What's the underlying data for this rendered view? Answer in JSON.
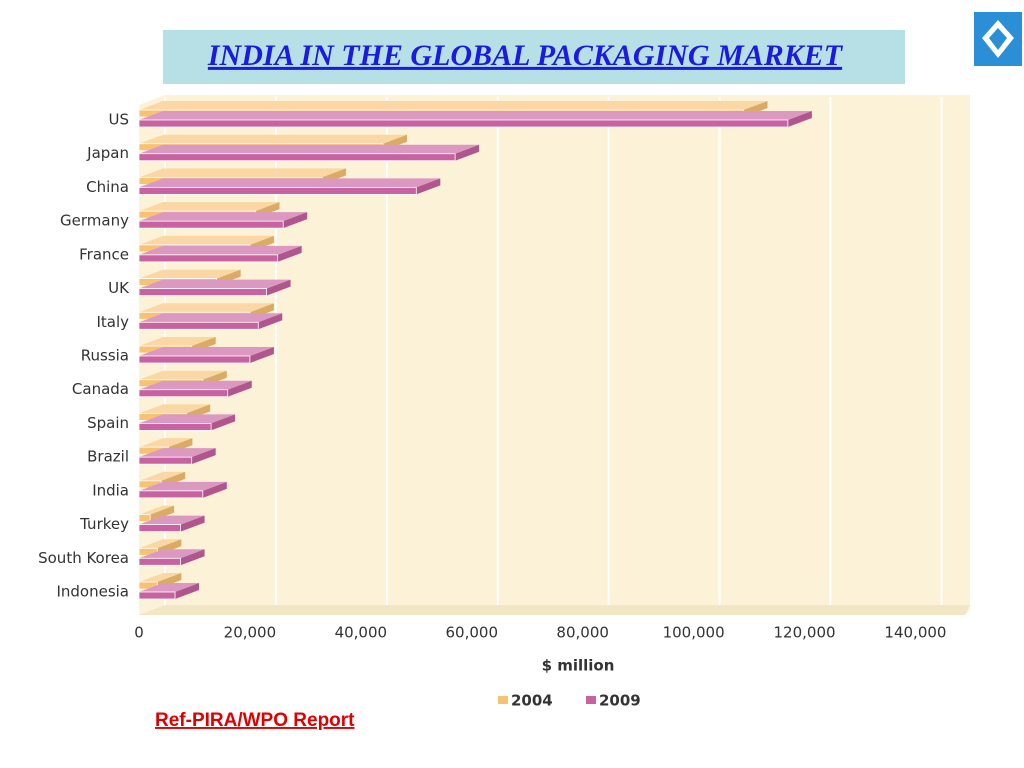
{
  "chart_data": {
    "type": "bar",
    "orientation": "horizontal",
    "title": "INDIA IN THE GLOBAL PACKAGING MARKET",
    "categories": [
      "US",
      "Japan",
      "China",
      "Germany",
      "France",
      "UK",
      "Italy",
      "Russia",
      "Canada",
      "Spain",
      "Brazil",
      "India",
      "Turkey",
      "South Korea",
      "Indonesia"
    ],
    "series": [
      {
        "name": "2004",
        "color": "#f8c273",
        "values": [
          109000,
          44000,
          33000,
          21000,
          20000,
          14000,
          20000,
          9500,
          11500,
          8500,
          5300,
          4000,
          2000,
          3300,
          3300
        ]
      },
      {
        "name": "2009",
        "color": "#c862a0",
        "values": [
          117000,
          57000,
          50000,
          26000,
          25000,
          23000,
          21500,
          20000,
          16000,
          13000,
          9500,
          11500,
          7500,
          7500,
          6500
        ]
      }
    ],
    "xlim": [
      0,
      140000
    ],
    "xticks": [
      0,
      {
        "value": 20000,
        "label": "20,000"
      },
      {
        "value": 40000,
        "label": "40,000"
      },
      {
        "value": 60000,
        "label": "60,000"
      },
      {
        "value": 80000,
        "label": "80,000"
      },
      {
        "value": 100000,
        "label": "100,000"
      },
      {
        "value": 120000,
        "label": "120,000"
      },
      {
        "value": 140000,
        "label": "140,000"
      }
    ],
    "xlabel": "$ million",
    "grid": true,
    "legend": "bottom",
    "source": "Ref-PIRA/WPO Report"
  }
}
